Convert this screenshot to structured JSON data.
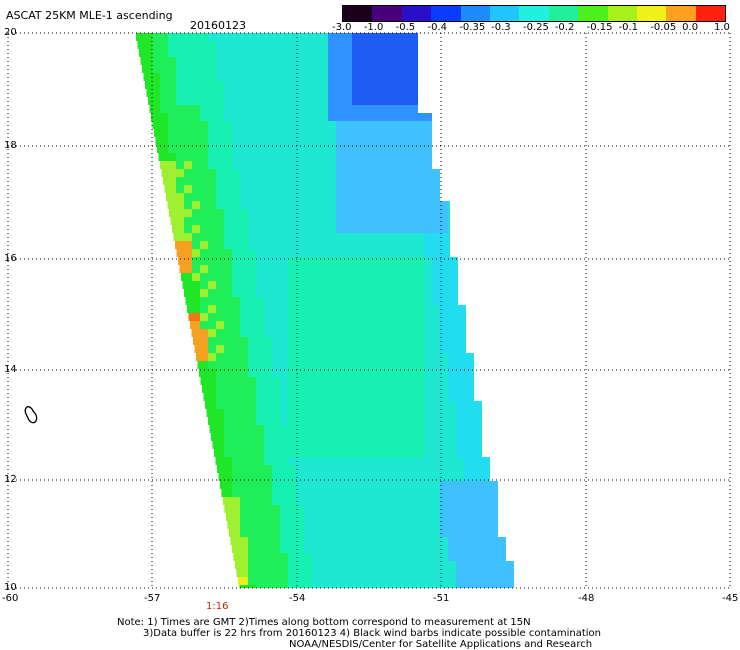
{
  "header": {
    "title": "ASCAT 25KM MLE-1 ascending",
    "date": "20160123"
  },
  "colorbar": {
    "labels": [
      "-3.0",
      "-1.0",
      "-0.5",
      "-0.4",
      "-0.35",
      "-0.3",
      "-0.25",
      "-0.2",
      "-0.15",
      "-0.1",
      "-0.05",
      "0.0",
      "1.0"
    ],
    "colors": [
      "#1a0018",
      "#4a007a",
      "#2a0fc8",
      "#0a3cff",
      "#1e8bff",
      "#22c6ff",
      "#20f0e0",
      "#20f09a",
      "#4cf01a",
      "#a8f01a",
      "#f0f01a",
      "#ffa020",
      "#ff2010"
    ]
  },
  "map": {
    "lat_labels": [
      "20",
      "18",
      "16",
      "14",
      "12",
      "10"
    ],
    "lon_labels": [
      "-60",
      "-57",
      "-54",
      "-51",
      "-48",
      "-45"
    ],
    "time_label": "1:16",
    "time_label_color": "#cc2200",
    "swath_colors": {
      "deep_blue": "#1f5cf5",
      "blue": "#2f93ff",
      "light_blue": "#3fc0ff",
      "cyan": "#22ddf2",
      "teal": "#1de8d2",
      "aqua_green": "#16f0b0",
      "green": "#1fee58",
      "bright_green": "#20e628",
      "yellow_green": "#9ef030",
      "yellow": "#e8f020",
      "orange": "#f4a020",
      "dark_orange": "#f07818"
    }
  },
  "footer": {
    "line1": "Note: 1) Times are GMT 2)Times along bottom correspond to measurement at 15N",
    "line2": "3)Data buffer is 22 hrs from 20160123 4) Black wind barbs indicate possible contamination",
    "line3": "NOAA/NESDIS/Center for Satellite Applications and Research"
  }
}
